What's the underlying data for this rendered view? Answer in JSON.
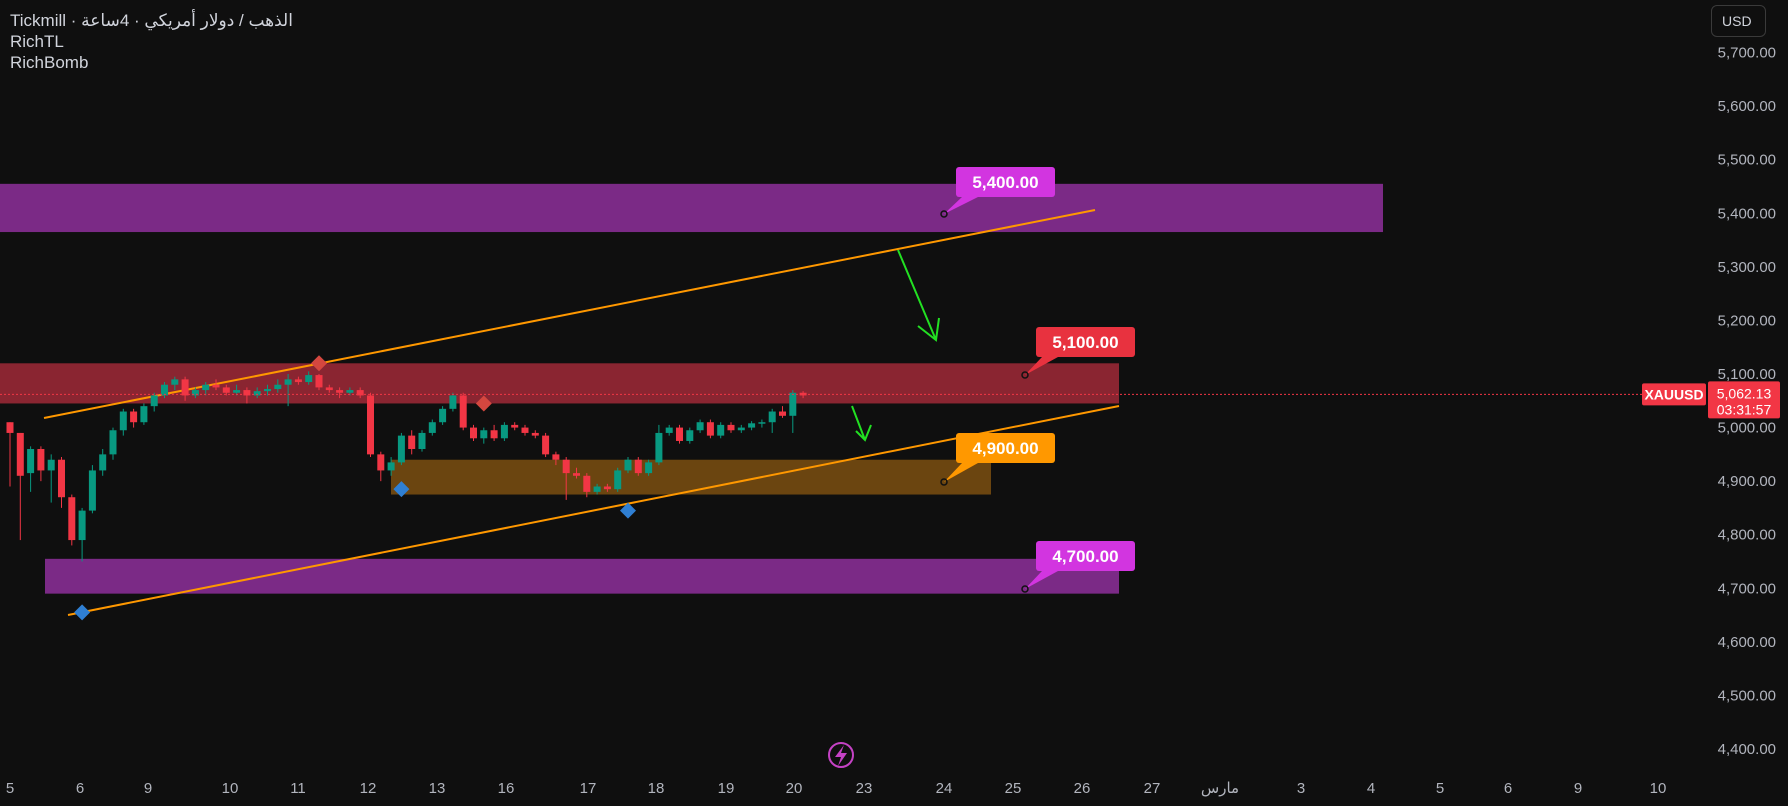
{
  "legend": {
    "line1": "Tickmill · الذهب / دولار أمريكي · 4ساعة",
    "line2": "RichTL",
    "line3": "RichBomb"
  },
  "currency": "USD",
  "symbol": "XAUUSD",
  "last_price": "5,062.13",
  "countdown": "03:31:57",
  "bolt_icon": "lightning-icon",
  "colors": {
    "background": "#0f0f0f",
    "up": "#089981",
    "down": "#f23645",
    "trendline": "#ff9800",
    "arrow": "#22e022",
    "purple_zone": "#7b2a86",
    "red_zone": "#8a2531",
    "orange_zone": "#6b4510"
  },
  "chart_data": {
    "type": "candlestick",
    "y_ticks": [
      "5,700.00",
      "5,600.00",
      "5,500.00",
      "5,400.00",
      "5,300.00",
      "5,200.00",
      "5,100.00",
      "5,000.00",
      "4,900.00",
      "4,800.00",
      "4,700.00",
      "4,600.00",
      "4,500.00",
      "4,400.00"
    ],
    "y_tick_values": [
      5700,
      5600,
      5500,
      5400,
      5300,
      5200,
      5100,
      5000,
      4900,
      4800,
      4700,
      4600,
      4500,
      4400
    ],
    "x_ticks": [
      "5",
      "6",
      "9",
      "10",
      "11",
      "12",
      "13",
      "16",
      "17",
      "18",
      "19",
      "20",
      "23",
      "24",
      "25",
      "26",
      "27",
      "مارس",
      "3",
      "4",
      "5",
      "6",
      "9",
      "10"
    ],
    "zones": [
      {
        "label": "5,400.00",
        "low": 5365,
        "high": 5455,
        "color": "purple"
      },
      {
        "label": "5,100.00",
        "low": 5045,
        "high": 5120,
        "color": "red"
      },
      {
        "label": "4,900.00",
        "low": 4875,
        "high": 4940,
        "color": "orange"
      },
      {
        "label": "4,700.00",
        "low": 4690,
        "high": 4755,
        "color": "purple"
      }
    ],
    "candles": [
      [
        5010,
        4990,
        5010,
        4890
      ],
      [
        4990,
        4910,
        4990,
        4790
      ],
      [
        4915,
        4960,
        4965,
        4880
      ],
      [
        4960,
        4920,
        4965,
        4900
      ],
      [
        4920,
        4940,
        4950,
        4860
      ],
      [
        4940,
        4870,
        4945,
        4850
      ],
      [
        4870,
        4790,
        4875,
        4780
      ],
      [
        4790,
        4845,
        4850,
        4750
      ],
      [
        4845,
        4920,
        4930,
        4840
      ],
      [
        4920,
        4950,
        4960,
        4910
      ],
      [
        4950,
        4995,
        5000,
        4940
      ],
      [
        4995,
        5030,
        5035,
        4985
      ],
      [
        5030,
        5010,
        5035,
        5000
      ],
      [
        5010,
        5040,
        5045,
        5005
      ],
      [
        5040,
        5060,
        5065,
        5030
      ],
      [
        5060,
        5080,
        5085,
        5055
      ],
      [
        5080,
        5090,
        5095,
        5070
      ],
      [
        5090,
        5060,
        5095,
        5050
      ],
      [
        5060,
        5070,
        5075,
        5055
      ],
      [
        5070,
        5080,
        5085,
        5060
      ],
      [
        5080,
        5075,
        5090,
        5070
      ],
      [
        5075,
        5065,
        5080,
        5060
      ],
      [
        5065,
        5070,
        5080,
        5060
      ],
      [
        5070,
        5060,
        5075,
        5045
      ],
      [
        5060,
        5068,
        5075,
        5055
      ],
      [
        5068,
        5072,
        5080,
        5060
      ],
      [
        5072,
        5080,
        5090,
        5065
      ],
      [
        5080,
        5090,
        5100,
        5040
      ],
      [
        5090,
        5085,
        5095,
        5080
      ],
      [
        5085,
        5098,
        5105,
        5080
      ],
      [
        5098,
        5075,
        5100,
        5070
      ],
      [
        5075,
        5070,
        5080,
        5065
      ],
      [
        5070,
        5065,
        5075,
        5055
      ],
      [
        5065,
        5070,
        5075,
        5060
      ],
      [
        5070,
        5060,
        5075,
        5055
      ],
      [
        5060,
        4950,
        5065,
        4945
      ],
      [
        4950,
        4920,
        4955,
        4900
      ],
      [
        4920,
        4935,
        4945,
        4910
      ],
      [
        4935,
        4985,
        4990,
        4930
      ],
      [
        4985,
        4960,
        4995,
        4950
      ],
      [
        4960,
        4990,
        4995,
        4955
      ],
      [
        4990,
        5010,
        5015,
        4985
      ],
      [
        5010,
        5035,
        5040,
        5005
      ],
      [
        5035,
        5060,
        5065,
        5030
      ],
      [
        5060,
        5000,
        5065,
        4995
      ],
      [
        5000,
        4980,
        5005,
        4975
      ],
      [
        4980,
        4995,
        5000,
        4970
      ],
      [
        4995,
        4980,
        5005,
        4975
      ],
      [
        4980,
        5005,
        5010,
        4975
      ],
      [
        5005,
        5000,
        5010,
        4995
      ],
      [
        5000,
        4990,
        5005,
        4985
      ],
      [
        4990,
        4985,
        4995,
        4980
      ],
      [
        4985,
        4950,
        4990,
        4945
      ],
      [
        4950,
        4940,
        4955,
        4930
      ],
      [
        4940,
        4915,
        4945,
        4865
      ],
      [
        4915,
        4910,
        4925,
        4905
      ],
      [
        4910,
        4880,
        4915,
        4870
      ],
      [
        4880,
        4890,
        4895,
        4875
      ],
      [
        4890,
        4885,
        4895,
        4880
      ],
      [
        4885,
        4920,
        4925,
        4880
      ],
      [
        4920,
        4940,
        4945,
        4915
      ],
      [
        4940,
        4915,
        4945,
        4910
      ],
      [
        4915,
        4935,
        4940,
        4910
      ],
      [
        4935,
        4990,
        5005,
        4930
      ],
      [
        4990,
        5000,
        5005,
        4985
      ],
      [
        5000,
        4975,
        5005,
        4970
      ],
      [
        4975,
        4995,
        5000,
        4970
      ],
      [
        4995,
        5010,
        5015,
        4990
      ],
      [
        5010,
        4985,
        5015,
        4980
      ],
      [
        4985,
        5005,
        5010,
        4980
      ],
      [
        5005,
        4995,
        5010,
        4990
      ],
      [
        4995,
        5000,
        5005,
        4990
      ],
      [
        5000,
        5008,
        5012,
        4995
      ],
      [
        5008,
        5010,
        5015,
        5000
      ],
      [
        5010,
        5030,
        5035,
        4990
      ],
      [
        5030,
        5022,
        5040,
        5018
      ],
      [
        5022,
        5065,
        5070,
        4990
      ],
      [
        5065,
        5060,
        5068,
        5055
      ]
    ],
    "markers": [
      {
        "index": 7,
        "price": 4655,
        "color": "blue"
      },
      {
        "index": 30,
        "price": 5120,
        "color": "red"
      },
      {
        "index": 38,
        "price": 4885,
        "color": "blue"
      },
      {
        "index": 46,
        "price": 5045,
        "color": "red"
      },
      {
        "index": 60,
        "price": 4845,
        "color": "blue"
      }
    ]
  }
}
